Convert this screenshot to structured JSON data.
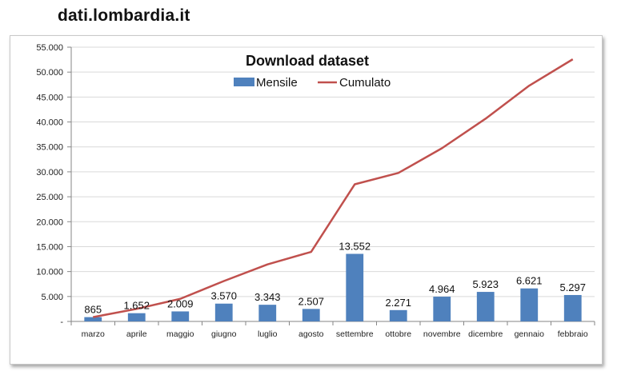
{
  "site_title": "dati.lombardia.it",
  "colors": {
    "bar": "#4f81bd",
    "line": "#c0504d",
    "grid": "#d9d9d9",
    "axis": "#868686"
  },
  "chart_data": {
    "type": "bar",
    "title": "Download dataset",
    "xlabel": "",
    "ylabel": "",
    "legend": "top-center",
    "grid": true,
    "ylim": [
      0,
      55000
    ],
    "yticks": [
      0,
      5000,
      10000,
      15000,
      20000,
      25000,
      30000,
      35000,
      40000,
      45000,
      50000,
      55000
    ],
    "ytick_labels": [
      "-",
      "5.000",
      "10.000",
      "15.000",
      "20.000",
      "25.000",
      "30.000",
      "35.000",
      "40.000",
      "45.000",
      "50.000",
      "55.000"
    ],
    "categories": [
      "marzo",
      "aprile",
      "maggio",
      "giugno",
      "luglio",
      "agosto",
      "settembre",
      "ottobre",
      "novembre",
      "dicembre",
      "gennaio",
      "febbraio"
    ],
    "series": [
      {
        "name": "Mensile",
        "type": "bar",
        "values": [
          865,
          1652,
          2009,
          3570,
          3343,
          2507,
          13552,
          2271,
          4964,
          5923,
          6621,
          5297
        ],
        "labels": [
          "865",
          "1.652",
          "2.009",
          "3.570",
          "3.343",
          "2.507",
          "13.552",
          "2.271",
          "4.964",
          "5.923",
          "6.621",
          "5.297"
        ]
      },
      {
        "name": "Cumulato",
        "type": "line",
        "values": [
          865,
          2517,
          4526,
          8096,
          11439,
          13946,
          27498,
          29769,
          34733,
          40656,
          47277,
          52574
        ]
      }
    ]
  }
}
